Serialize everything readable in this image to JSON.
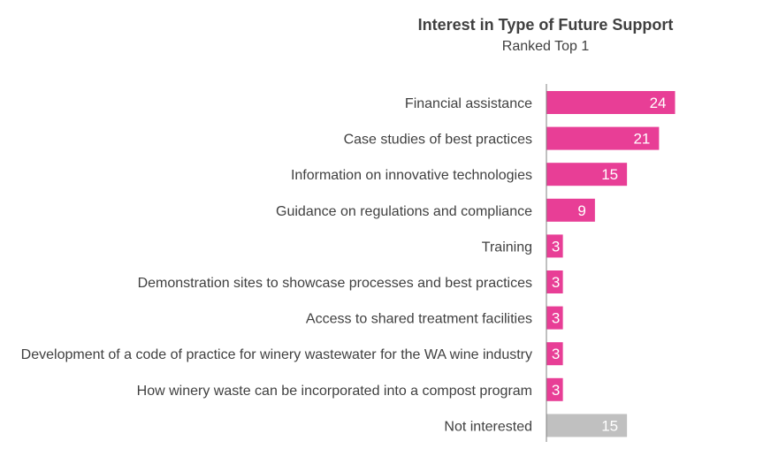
{
  "chart_data": {
    "type": "bar",
    "orientation": "horizontal",
    "title": "Interest in Type of Future Support",
    "subtitle": "Ranked Top 1",
    "categories": [
      "Financial assistance",
      "Case studies of best practices",
      "Information on innovative technologies",
      "Guidance on regulations and compliance",
      "Training",
      "Demonstration sites to showcase processes and best practices",
      "Access to shared treatment facilities",
      "Development of a code of practice for winery wastewater for the WA wine industry",
      "How winery waste can be incorporated into a compost program",
      "Not interested"
    ],
    "values": [
      24,
      21,
      15,
      9,
      3,
      3,
      3,
      3,
      3,
      15
    ],
    "value_labels": [
      "24",
      "21",
      "15",
      "9",
      "3",
      "3",
      "3",
      "3",
      "3",
      "15"
    ],
    "bar_colors": [
      "#e83e96",
      "#e83e96",
      "#e83e96",
      "#e83e96",
      "#e83e96",
      "#e83e96",
      "#e83e96",
      "#e83e96",
      "#e83e96",
      "#c0c0c0"
    ],
    "xlim": [
      0,
      24
    ],
    "grid": false,
    "legend": "none",
    "axis_color": "#808080"
  }
}
